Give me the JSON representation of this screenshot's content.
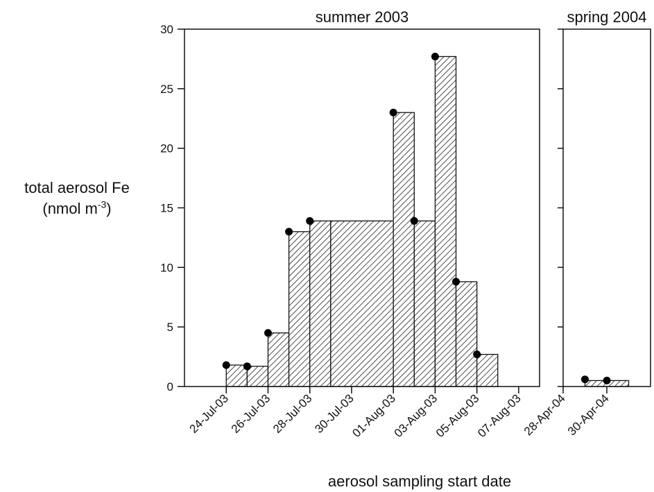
{
  "chart_data": {
    "type": "bar",
    "ylabel_text": "total aerosol Fe",
    "ylabel_unit_prefix": "(nmol m",
    "ylabel_unit_exponent": "-3",
    "ylabel_unit_suffix": ")",
    "xlabel": "aerosol sampling start date",
    "ylim": [
      0,
      30
    ],
    "yticks": [
      0,
      5,
      10,
      15,
      20,
      25,
      30
    ],
    "panels": [
      {
        "title": "summer 2003",
        "xlim": [
          "2003-07-22",
          "2003-08-08"
        ],
        "xtick_labels": [
          "24-Jul-03",
          "26-Jul-03",
          "28-Jul-03",
          "30-Jul-03",
          "01-Aug-03",
          "03-Aug-03",
          "05-Aug-03",
          "07-Aug-03"
        ],
        "xtick_dates": [
          "2003-07-24",
          "2003-07-26",
          "2003-07-28",
          "2003-07-30",
          "2003-08-01",
          "2003-08-03",
          "2003-08-05",
          "2003-08-07"
        ],
        "samples": [
          {
            "start": "2003-07-24 00:00",
            "end": "2003-07-25 00:00",
            "value": 1.8
          },
          {
            "start": "2003-07-25 00:00",
            "end": "2003-07-26 00:00",
            "value": 1.7
          },
          {
            "start": "2003-07-26 00:00",
            "end": "2003-07-27 00:00",
            "value": 4.5
          },
          {
            "start": "2003-07-27 00:00",
            "end": "2003-07-28 00:00",
            "value": 13.0
          },
          {
            "start": "2003-07-28 00:00",
            "end": "2003-07-29 00:00",
            "value": 13.9
          },
          {
            "start": "2003-07-29 00:00",
            "end": "2003-08-01 00:00",
            "value": 13.9
          },
          {
            "start": "2003-08-01 00:00",
            "end": "2003-08-02 00:00",
            "value": 23.0
          },
          {
            "start": "2003-08-02 00:00",
            "end": "2003-08-03 00:00",
            "value": 13.9
          },
          {
            "start": "2003-08-03 00:00",
            "end": "2003-08-04 00:00",
            "value": 27.7
          },
          {
            "start": "2003-08-04 00:00",
            "end": "2003-08-05 00:00",
            "value": 8.8
          },
          {
            "start": "2003-08-05 00:00",
            "end": "2003-08-06 00:00",
            "value": 2.7
          }
        ],
        "markers": [
          {
            "date": "2003-07-24 00:00",
            "value": 1.8
          },
          {
            "date": "2003-07-25 00:00",
            "value": 1.7
          },
          {
            "date": "2003-07-26 00:00",
            "value": 4.5
          },
          {
            "date": "2003-07-27 00:00",
            "value": 13.0
          },
          {
            "date": "2003-07-28 00:00",
            "value": 13.9
          },
          {
            "date": "2003-08-01 00:00",
            "value": 23.0
          },
          {
            "date": "2003-08-02 00:00",
            "value": 13.9
          },
          {
            "date": "2003-08-03 00:00",
            "value": 27.7
          },
          {
            "date": "2003-08-04 00:00",
            "value": 8.8
          },
          {
            "date": "2003-08-05 00:00",
            "value": 2.7
          }
        ]
      },
      {
        "title": "spring 2004",
        "xlim": [
          "2004-04-28",
          "2004-05-02"
        ],
        "xtick_labels": [
          "28-Apr-04",
          "30-Apr-04"
        ],
        "xtick_dates": [
          "2004-04-28",
          "2004-04-30"
        ],
        "samples": [
          {
            "start": "2004-04-29 00:00",
            "end": "2004-05-01 00:00",
            "value": 0.5
          }
        ],
        "markers": [
          {
            "date": "2004-04-29 00:00",
            "value": 0.6
          },
          {
            "date": "2004-04-30 00:00",
            "value": 0.5
          }
        ]
      }
    ]
  }
}
